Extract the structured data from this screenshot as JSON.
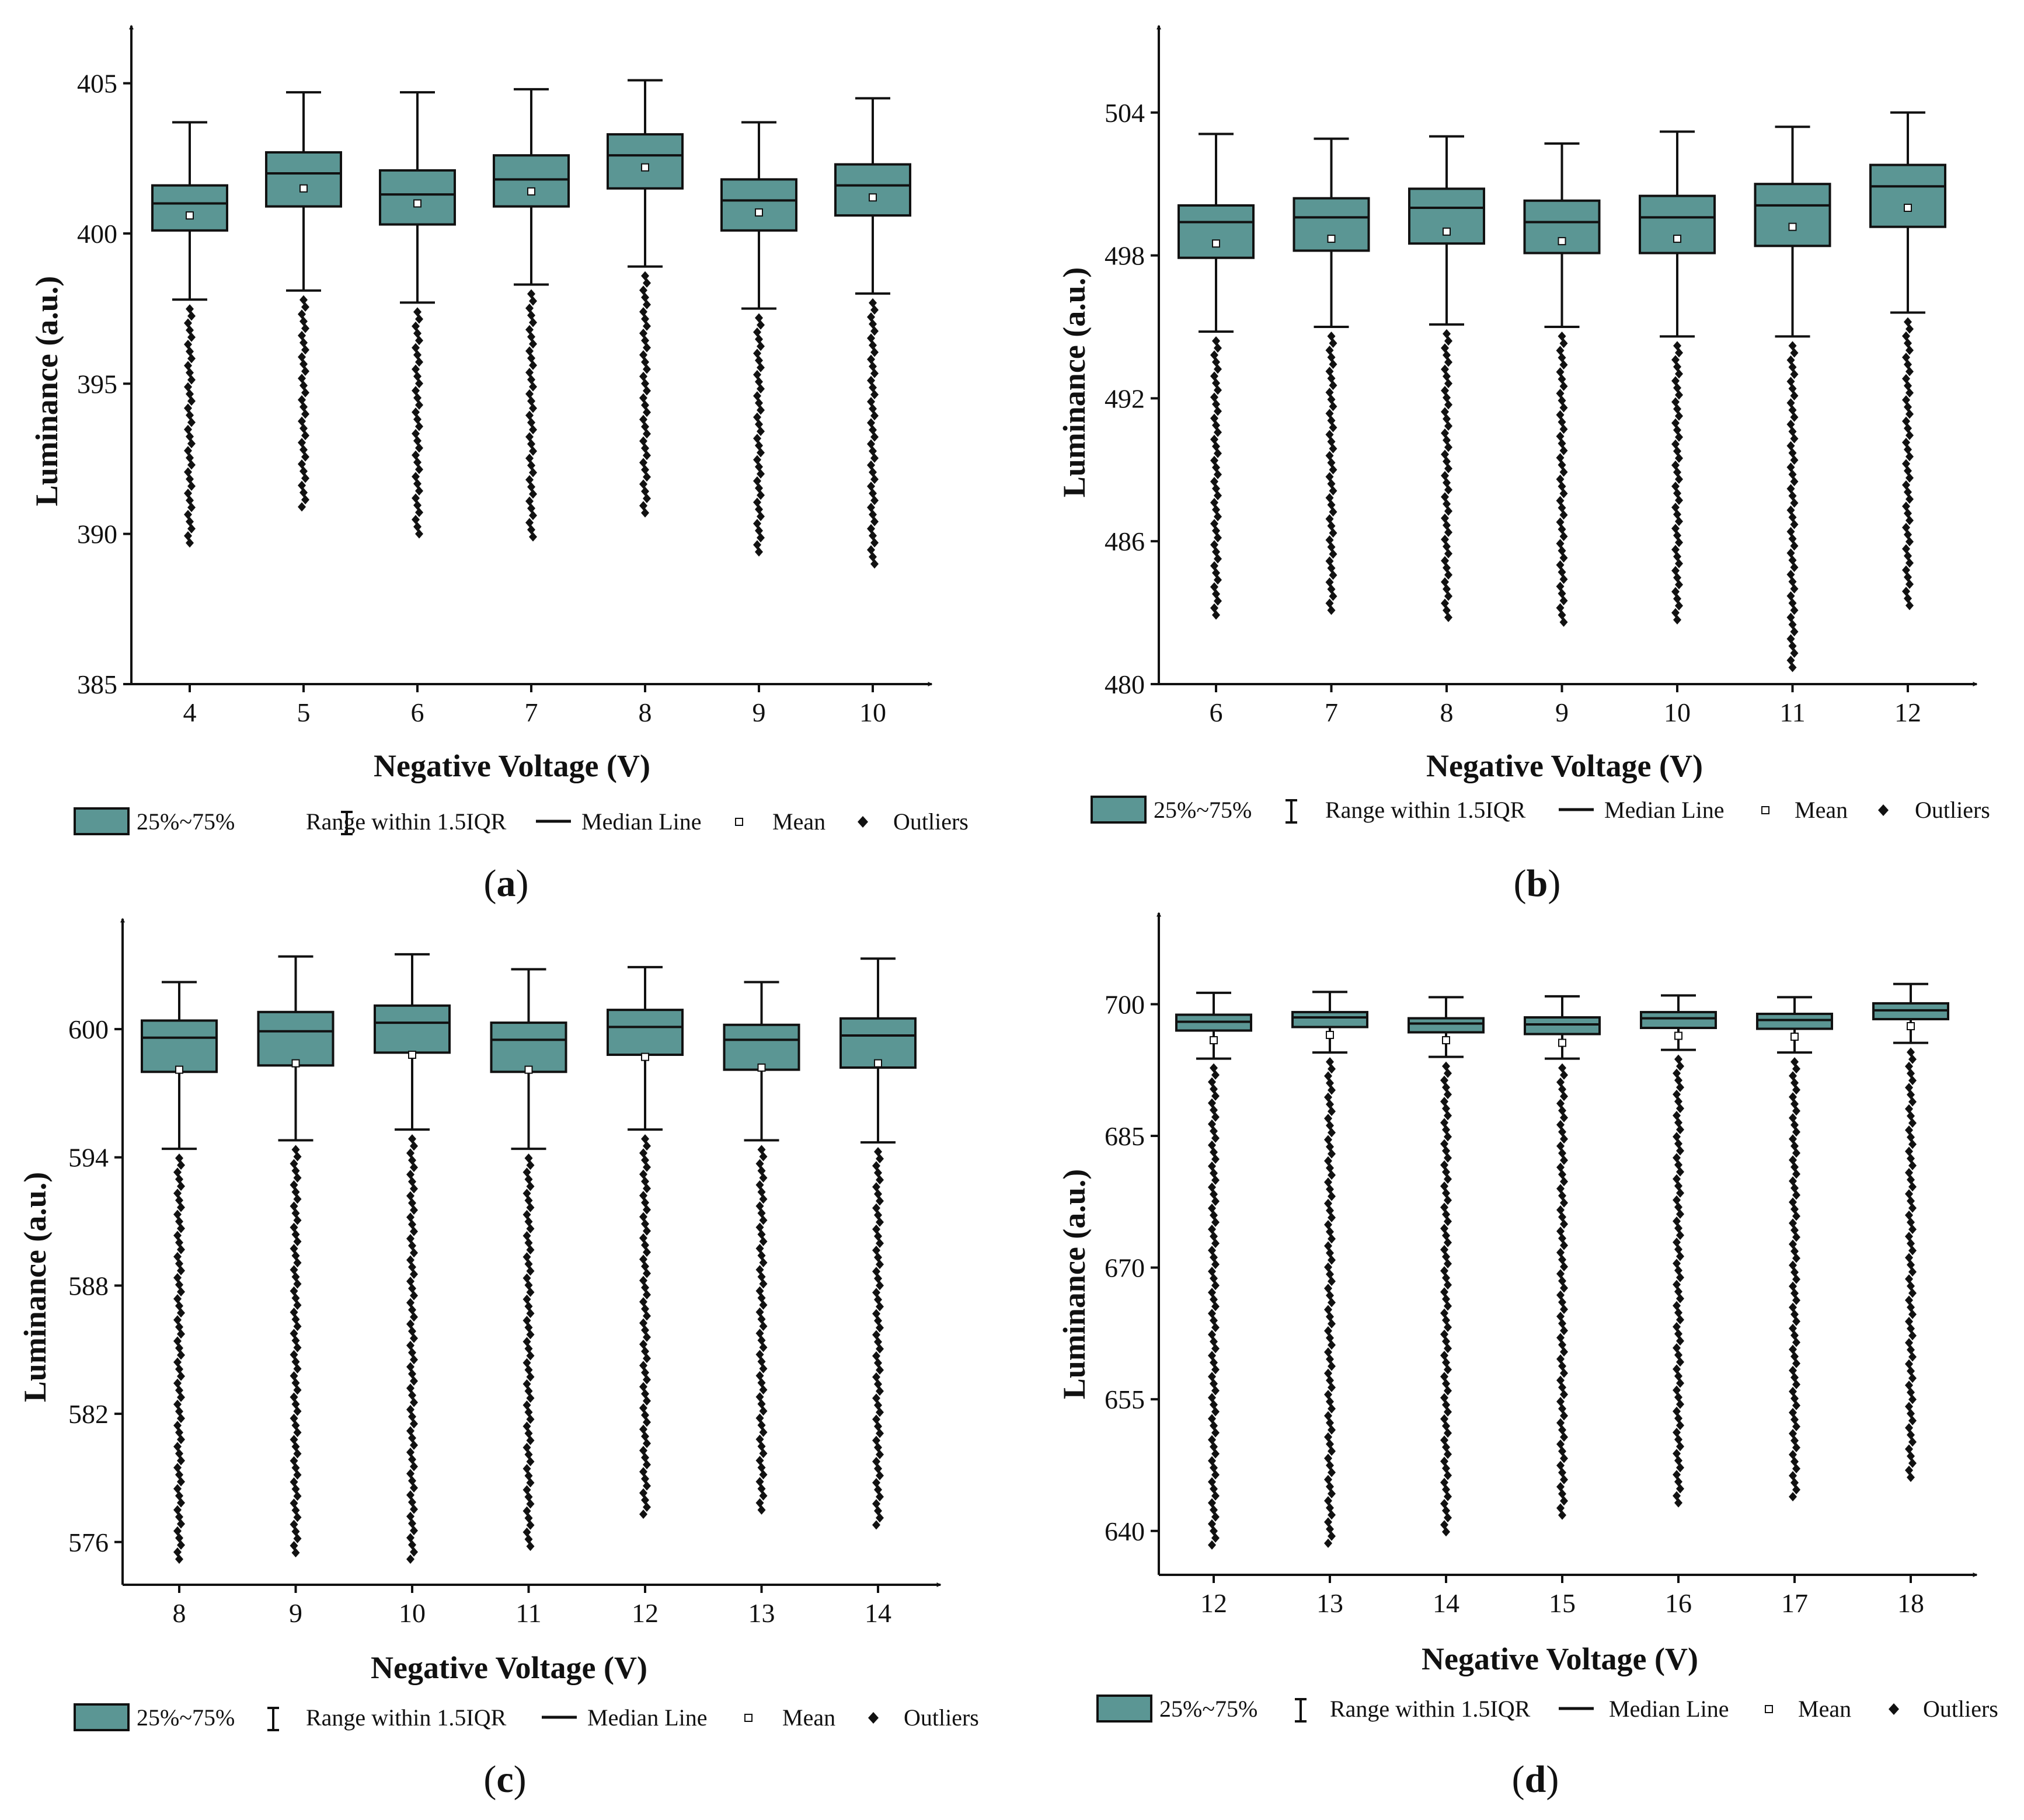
{
  "figure": {
    "legend": {
      "box": "25%~75%",
      "whisker": "Range within 1.5IQR",
      "median": "Median Line",
      "mean": "Mean",
      "outliers": "Outliers"
    },
    "colors": {
      "box_fill": "#5b9694",
      "axis": "#111111",
      "mean_marker": "#ffffff",
      "outlier": "#111111"
    }
  },
  "chart_data": [
    {
      "type": "box",
      "panel": "a",
      "title": "",
      "xlabel": "Negative Voltage (V)",
      "ylabel": "Luminance (a.u.)",
      "ylim": [
        385,
        406.8
      ],
      "yticks": [
        385,
        390,
        395,
        400,
        405
      ],
      "categories": [
        "4",
        "5",
        "6",
        "7",
        "8",
        "9",
        "10"
      ],
      "q1": [
        400.1,
        400.9,
        400.3,
        400.9,
        401.5,
        400.1,
        400.6
      ],
      "median": [
        401.0,
        402.0,
        401.3,
        401.8,
        402.6,
        401.1,
        401.6
      ],
      "q3": [
        401.6,
        402.7,
        402.1,
        402.6,
        403.3,
        401.8,
        402.3
      ],
      "mean": [
        400.6,
        401.5,
        401.0,
        401.4,
        402.2,
        400.7,
        401.2
      ],
      "whisker_low": [
        397.8,
        398.1,
        397.7,
        398.3,
        398.9,
        397.5,
        398.0
      ],
      "whisker_high": [
        403.7,
        404.7,
        404.7,
        404.8,
        405.1,
        403.7,
        404.5
      ],
      "outlier_min": [
        389.7,
        390.9,
        390.0,
        389.9,
        390.7,
        389.4,
        389.0
      ]
    },
    {
      "type": "box",
      "panel": "b",
      "title": "",
      "xlabel": "Negative Voltage (V)",
      "ylabel": "Luminance (a.u.)",
      "ylim": [
        480,
        507.5
      ],
      "yticks": [
        480,
        486,
        492,
        498,
        504
      ],
      "categories": [
        "6",
        "7",
        "8",
        "9",
        "10",
        "11",
        "12"
      ],
      "q1": [
        497.9,
        498.2,
        498.5,
        498.1,
        498.1,
        498.4,
        499.2
      ],
      "median": [
        499.4,
        499.6,
        500.0,
        499.4,
        499.6,
        500.1,
        500.9
      ],
      "q3": [
        500.1,
        500.4,
        500.8,
        500.3,
        500.5,
        501.0,
        501.8
      ],
      "mean": [
        498.5,
        498.7,
        499.0,
        498.6,
        498.7,
        499.2,
        500.0
      ],
      "whisker_low": [
        494.8,
        495.0,
        495.1,
        495.0,
        494.6,
        494.6,
        495.6
      ],
      "whisker_high": [
        503.1,
        502.9,
        503.0,
        502.7,
        503.2,
        503.4,
        504.0
      ],
      "outlier_min": [
        482.9,
        483.1,
        482.8,
        482.6,
        482.7,
        480.7,
        483.3
      ]
    },
    {
      "type": "box",
      "panel": "c",
      "title": "",
      "xlabel": "Negative Voltage (V)",
      "ylabel": "Luminance (a.u.)",
      "ylim": [
        574,
        605
      ],
      "yticks": [
        576,
        582,
        588,
        594,
        600
      ],
      "categories": [
        "8",
        "9",
        "10",
        "11",
        "12",
        "13",
        "14"
      ],
      "q1": [
        598.0,
        598.3,
        598.9,
        598.0,
        598.8,
        598.1,
        598.2
      ],
      "median": [
        599.6,
        599.9,
        600.3,
        599.5,
        600.1,
        599.5,
        599.7
      ],
      "q3": [
        600.4,
        600.8,
        601.1,
        600.3,
        600.9,
        600.2,
        600.5
      ],
      "mean": [
        598.1,
        598.4,
        598.8,
        598.1,
        598.7,
        598.2,
        598.4
      ],
      "whisker_low": [
        594.4,
        594.8,
        595.3,
        594.4,
        595.3,
        594.8,
        594.7
      ],
      "whisker_high": [
        602.2,
        603.4,
        603.5,
        602.8,
        602.9,
        602.2,
        603.3
      ],
      "outlier_min": [
        575.2,
        575.5,
        575.2,
        575.8,
        577.3,
        577.5,
        576.8
      ]
    },
    {
      "type": "box",
      "panel": "d",
      "title": "",
      "xlabel": "Negative Voltage (V)",
      "ylabel": "Luminance (a.u.)",
      "ylim": [
        635,
        710
      ],
      "yticks": [
        640,
        655,
        670,
        685,
        700
      ],
      "categories": [
        "12",
        "13",
        "14",
        "15",
        "16",
        "17",
        "18"
      ],
      "q1": [
        697.0,
        697.4,
        696.8,
        696.6,
        697.3,
        697.2,
        698.3
      ],
      "median": [
        698.0,
        698.5,
        697.8,
        697.7,
        698.4,
        698.2,
        699.3
      ],
      "q3": [
        698.8,
        699.1,
        698.4,
        698.5,
        699.1,
        698.9,
        700.1
      ],
      "mean": [
        695.9,
        696.5,
        695.9,
        695.6,
        696.4,
        696.3,
        697.5
      ],
      "whisker_low": [
        693.8,
        694.5,
        694.0,
        693.8,
        694.8,
        694.5,
        695.6
      ],
      "whisker_high": [
        701.3,
        701.4,
        700.8,
        700.9,
        701.0,
        700.8,
        702.3
      ],
      "outlier_min": [
        638.4,
        638.6,
        639.9,
        641.8,
        643.2,
        643.9,
        646.1
      ]
    }
  ]
}
